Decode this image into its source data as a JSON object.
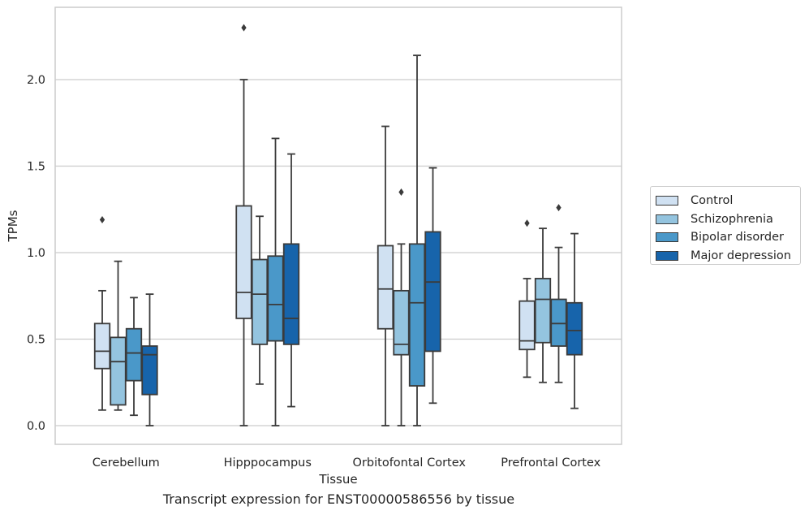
{
  "chart_data": {
    "type": "box",
    "title": "",
    "caption": "Transcript expression for ENST00000586556 by tissue",
    "xlabel": "Tissue",
    "ylabel": "TPMs",
    "ylim": [
      -0.11,
      2.42
    ],
    "yticks": [
      "0.0",
      "0.5",
      "1.0",
      "1.5",
      "2.0"
    ],
    "grid": "horizontal",
    "legend_position": "right",
    "categories": [
      "Cerebellum",
      "Hipppocampus",
      "Orbitofontal Cortex",
      "Prefrontal Cortex"
    ],
    "series": [
      {
        "name": "Control",
        "color": "#d0e1f2",
        "boxes": [
          {
            "min": 0.09,
            "q1": 0.33,
            "median": 0.43,
            "q3": 0.59,
            "max": 0.78,
            "outliers": [
              1.19
            ]
          },
          {
            "min": 0.0,
            "q1": 0.62,
            "median": 0.77,
            "q3": 1.27,
            "max": 2.0,
            "outliers": [
              2.3
            ]
          },
          {
            "min": 0.0,
            "q1": 0.56,
            "median": 0.79,
            "q3": 1.04,
            "max": 1.73,
            "outliers": []
          },
          {
            "min": 0.28,
            "q1": 0.44,
            "median": 0.49,
            "q3": 0.72,
            "max": 0.85,
            "outliers": [
              1.17
            ]
          }
        ]
      },
      {
        "name": "Schizophrenia",
        "color": "#94c4df",
        "boxes": [
          {
            "min": 0.09,
            "q1": 0.12,
            "median": 0.37,
            "q3": 0.51,
            "max": 0.95,
            "outliers": []
          },
          {
            "min": 0.24,
            "q1": 0.47,
            "median": 0.76,
            "q3": 0.96,
            "max": 1.21,
            "outliers": []
          },
          {
            "min": 0.0,
            "q1": 0.41,
            "median": 0.47,
            "q3": 0.78,
            "max": 1.05,
            "outliers": [
              1.35
            ]
          },
          {
            "min": 0.25,
            "q1": 0.48,
            "median": 0.73,
            "q3": 0.85,
            "max": 1.14,
            "outliers": []
          }
        ]
      },
      {
        "name": "Bipolar disorder",
        "color": "#4a98c9",
        "boxes": [
          {
            "min": 0.06,
            "q1": 0.26,
            "median": 0.42,
            "q3": 0.56,
            "max": 0.74,
            "outliers": []
          },
          {
            "min": 0.0,
            "q1": 0.49,
            "median": 0.7,
            "q3": 0.98,
            "max": 1.66,
            "outliers": []
          },
          {
            "min": 0.0,
            "q1": 0.23,
            "median": 0.71,
            "q3": 1.05,
            "max": 2.14,
            "outliers": []
          },
          {
            "min": 0.25,
            "q1": 0.46,
            "median": 0.59,
            "q3": 0.73,
            "max": 1.03,
            "outliers": [
              1.26
            ]
          }
        ]
      },
      {
        "name": "Major depression",
        "color": "#1764ab",
        "boxes": [
          {
            "min": 0.0,
            "q1": 0.18,
            "median": 0.41,
            "q3": 0.46,
            "max": 0.76,
            "outliers": []
          },
          {
            "min": 0.11,
            "q1": 0.47,
            "median": 0.62,
            "q3": 1.05,
            "max": 1.57,
            "outliers": []
          },
          {
            "min": 0.13,
            "q1": 0.43,
            "median": 0.83,
            "q3": 1.12,
            "max": 1.49,
            "outliers": []
          },
          {
            "min": 0.1,
            "q1": 0.41,
            "median": 0.55,
            "q3": 0.71,
            "max": 1.11,
            "outliers": []
          }
        ]
      }
    ]
  }
}
